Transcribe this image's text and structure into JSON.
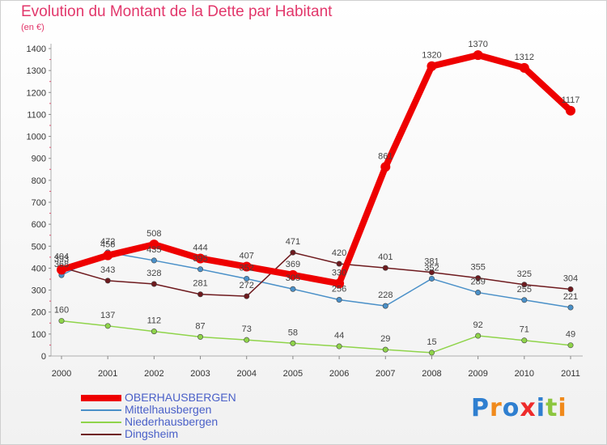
{
  "header": {
    "title": "Evolution du Montant de la Dette par Habitant",
    "unit": "(en €)"
  },
  "chart_data": {
    "type": "line",
    "title": "Evolution du Montant de la Dette par Habitant",
    "ylabel": "(en €)",
    "x": [
      "2000",
      "2001",
      "2002",
      "2003",
      "2004",
      "2005",
      "2006",
      "2007",
      "2008",
      "2009",
      "2010",
      "2011"
    ],
    "ylim": [
      0,
      1400
    ],
    "yticks": [
      0,
      100,
      200,
      300,
      400,
      500,
      600,
      700,
      800,
      900,
      1000,
      1100,
      1200,
      1300,
      1400
    ],
    "grid": false,
    "legend_position": "bottom-left",
    "series": [
      {
        "name": "Mittelhausbergen",
        "color": "#4a90c8",
        "values": [
          368,
          472,
          435,
          395,
          352,
          305,
          256,
          228,
          352,
          289,
          255,
          221
        ]
      },
      {
        "name": "Niederhausbergen",
        "color": "#8fd44a",
        "values": [
          160,
          137,
          112,
          87,
          73,
          58,
          44,
          29,
          15,
          92,
          71,
          49
        ]
      },
      {
        "name": "Dingsheim",
        "color": "#6e1a1e",
        "values": [
          404,
          343,
          328,
          281,
          272,
          471,
          420,
          401,
          381,
          355,
          325,
          304
        ]
      },
      {
        "name": "OBERHAUSBERGEN",
        "color": "#ee0000",
        "values": [
          393,
          458,
          508,
          444,
          407,
          369,
          330,
          861,
          1320,
          1370,
          1312,
          1117
        ]
      }
    ],
    "legend_order": [
      "OBERHAUSBERGEN",
      "Mittelhausbergen",
      "Niederhausbergen",
      "Dingsheim"
    ]
  },
  "logo": {
    "letters": [
      "P",
      "r",
      "o",
      "x",
      "i",
      "t",
      "i"
    ],
    "colors": [
      "#2f7fd0",
      "#f08a1c",
      "#2f7fd0",
      "#ee2b2b",
      "#2f7fd0",
      "#8cc63f",
      "#f08a1c"
    ]
  }
}
